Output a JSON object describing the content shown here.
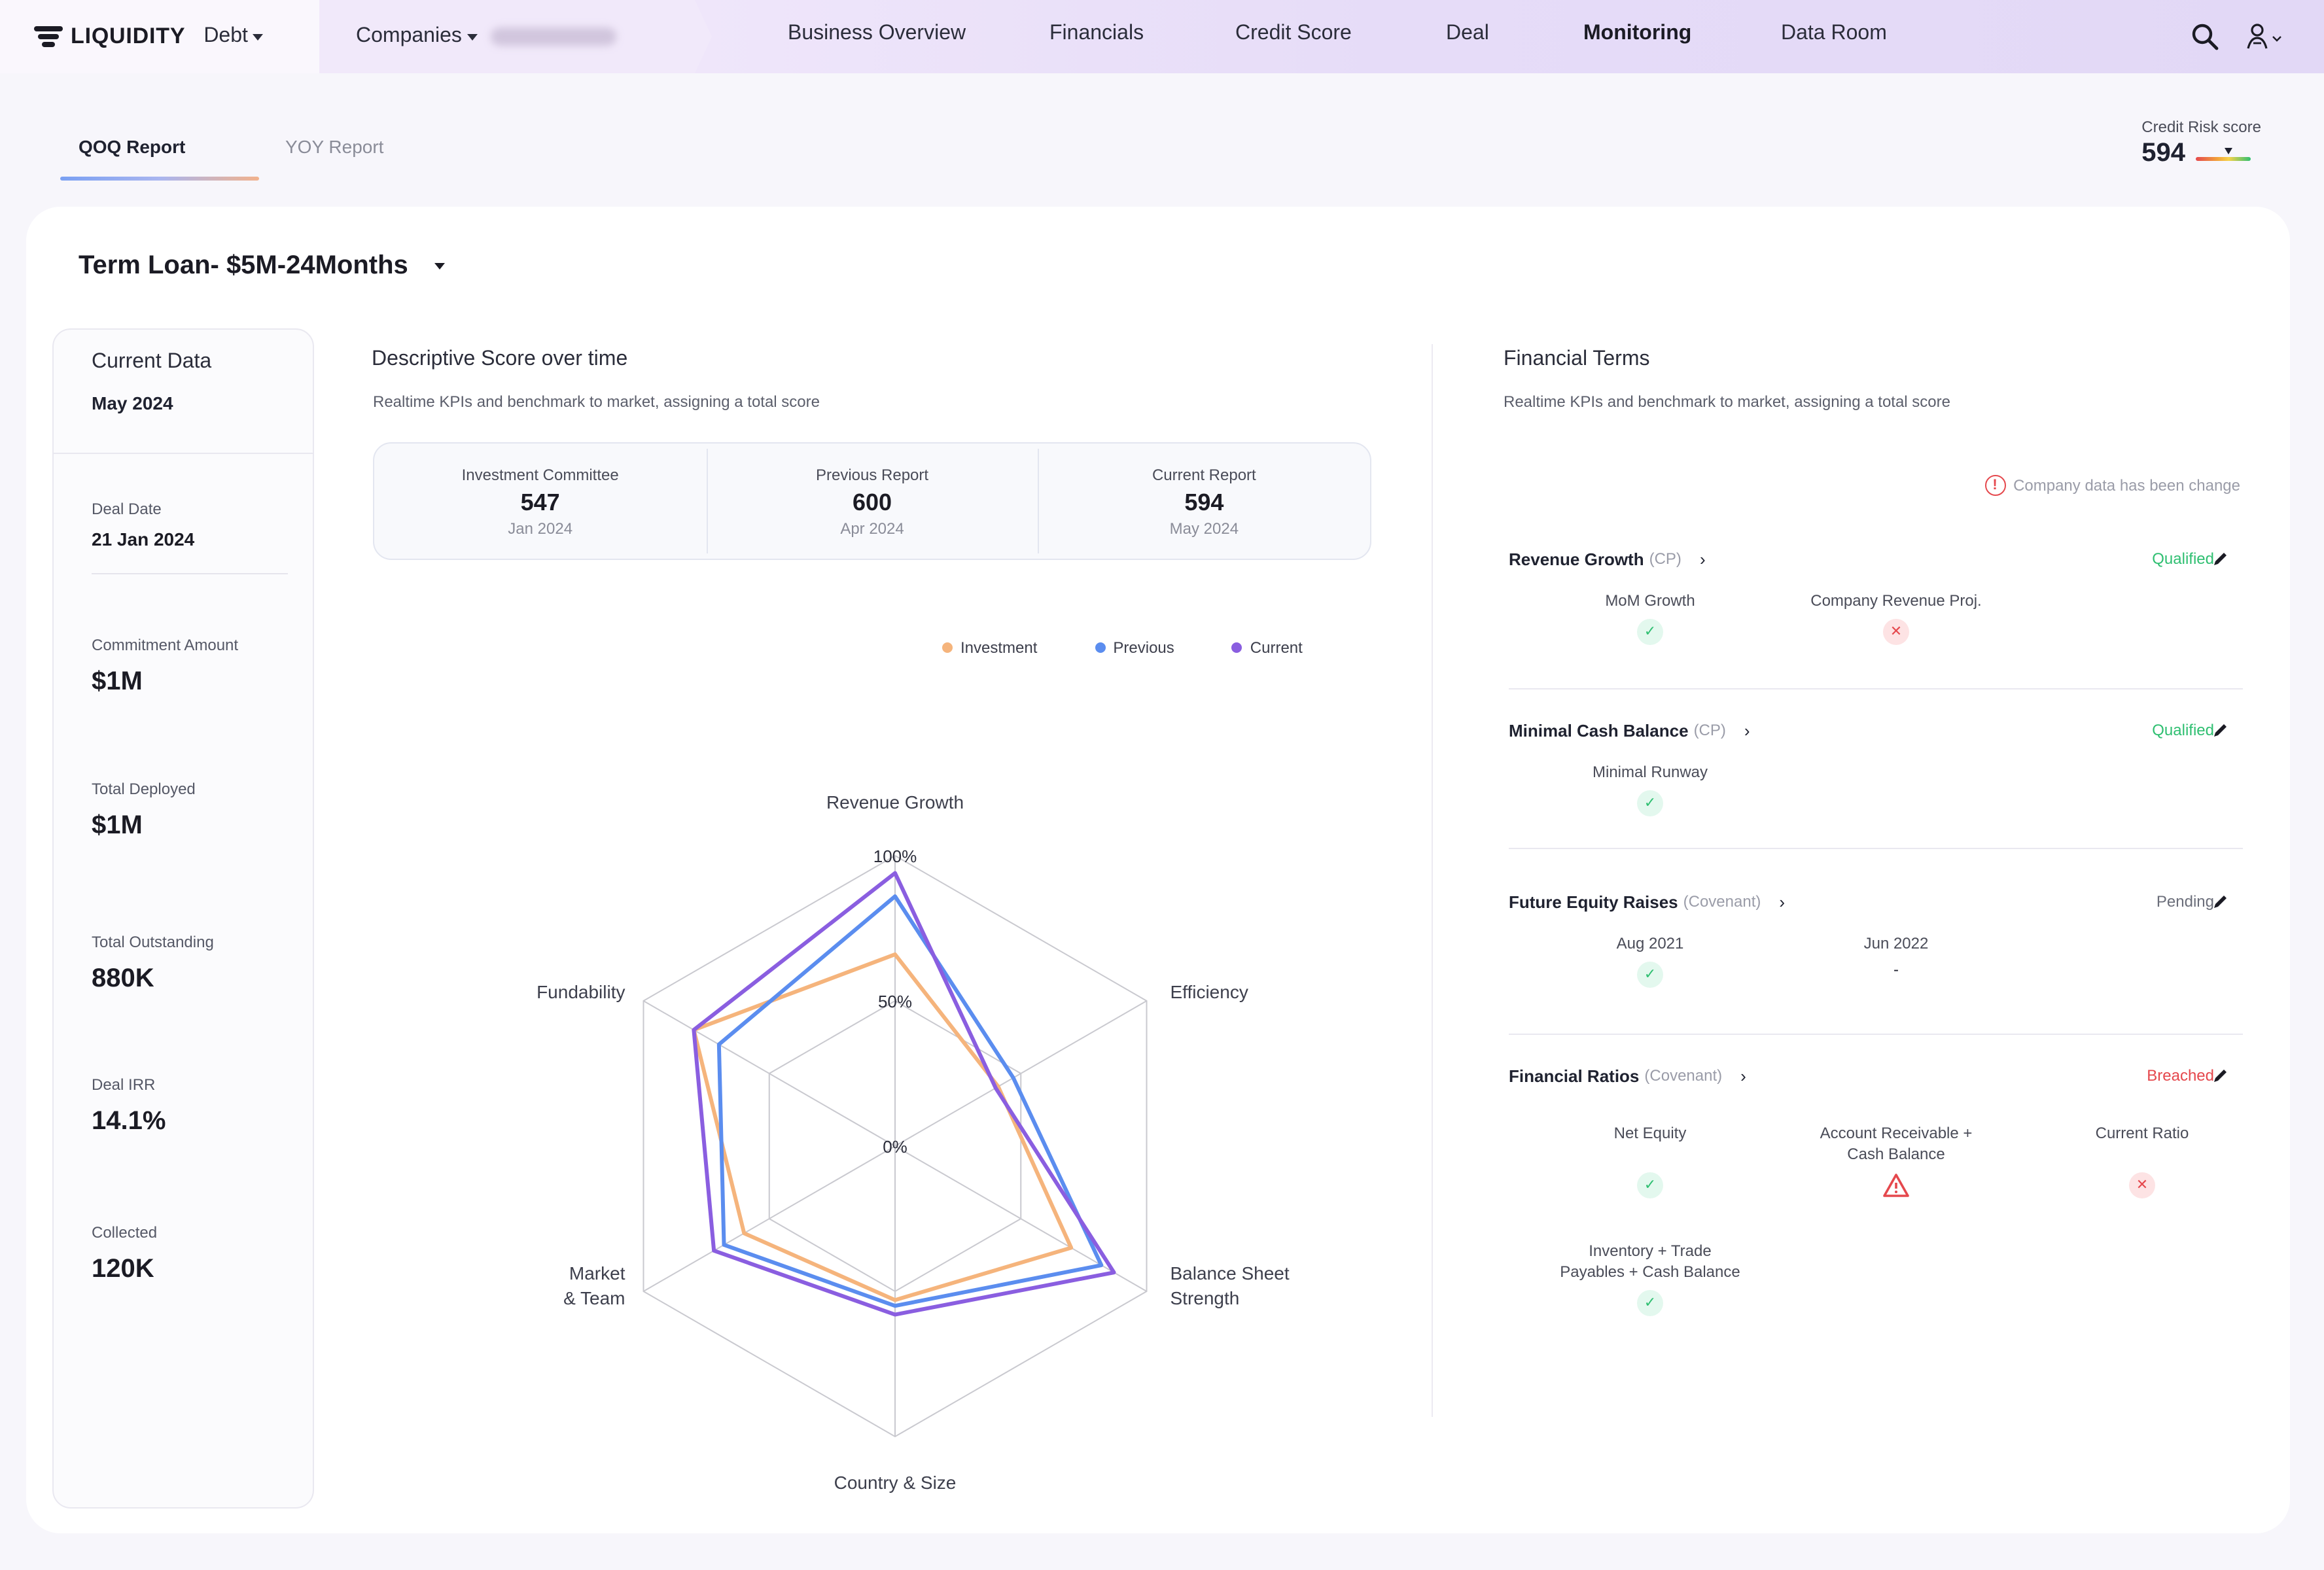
{
  "app": {
    "brand": "LIQUIDITY",
    "product_selector": "Debt",
    "companies_selector": "Companies"
  },
  "nav": {
    "items": [
      "Business Overview",
      "Financials",
      "Credit Score",
      "Deal",
      "Monitoring",
      "Data Room"
    ],
    "active": "Monitoring"
  },
  "tabs": {
    "qoq": "QOQ Report",
    "yoy": "YOY Report",
    "active": "QOQ Report"
  },
  "credit_risk": {
    "label": "Credit Risk score",
    "value": "594"
  },
  "loan": {
    "title": "Term Loan- $5M-24Months"
  },
  "current_data": {
    "title": "Current Data",
    "date": "May 2024",
    "deal_date_label": "Deal Date",
    "deal_date": "21 Jan 2024",
    "commitment_label": "Commitment Amount",
    "commitment": "$1M",
    "deployed_label": "Total Deployed",
    "deployed": "$1M",
    "outstanding_label": "Total Outstanding",
    "outstanding": "880K",
    "irr_label": "Deal IRR",
    "irr": "14.1%",
    "collected_label": "Collected",
    "collected": "120K"
  },
  "descriptive": {
    "title": "Descriptive Score over time",
    "subtitle": "Realtime KPIs and benchmark to market, assigning a total score",
    "scores": [
      {
        "label": "Investment Committee",
        "value": "547",
        "date": "Jan 2024"
      },
      {
        "label": "Previous Report",
        "value": "600",
        "date": "Apr 2024"
      },
      {
        "label": "Current Report",
        "value": "594",
        "date": "May 2024"
      }
    ]
  },
  "chart_data": {
    "type": "radar",
    "axes": [
      "Revenue Growth",
      "Efficiency",
      "Balance Sheet Strength",
      "Country & Size",
      "Market & Team",
      "Fundability"
    ],
    "axis_label_lines": [
      [
        "Revenue Growth"
      ],
      [
        "Efficiency"
      ],
      [
        "Balance Sheet",
        "Strength"
      ],
      [
        "Country & Size"
      ],
      [
        "Market",
        "& Team"
      ],
      [
        "Fundability"
      ]
    ],
    "ring_labels": [
      "0%",
      "50%",
      "100%"
    ],
    "range": [
      0,
      100
    ],
    "legend": "top-right",
    "series": [
      {
        "name": "Investment",
        "color": "#f5b47c",
        "values": [
          66,
          41,
          70,
          53,
          60,
          80
        ]
      },
      {
        "name": "Previous",
        "color": "#5b8def",
        "values": [
          86,
          47,
          82,
          55,
          68,
          70
        ]
      },
      {
        "name": "Current",
        "color": "#8a5ee0",
        "values": [
          94,
          40,
          87,
          58,
          72,
          80
        ]
      }
    ]
  },
  "financial_terms": {
    "title": "Financial Terms",
    "subtitle": "Realtime KPIs and benchmark to market, assigning a total score",
    "warning": "Company data has been change",
    "terms": [
      {
        "name": "Revenue Growth",
        "tag": "(CP)",
        "status": "Qualified",
        "status_class": "qualified",
        "metrics": [
          {
            "label": "MoM Growth",
            "state": "ok"
          },
          {
            "label": "Company Revenue Proj.",
            "state": "bad"
          }
        ]
      },
      {
        "name": "Minimal Cash Balance",
        "tag": "(CP)",
        "status": "Qualified",
        "status_class": "qualified",
        "metrics": [
          {
            "label": "Minimal Runway",
            "state": "ok"
          }
        ]
      },
      {
        "name": "Future Equity Raises",
        "tag": "(Covenant)",
        "status": "Pending",
        "status_class": "pending",
        "metrics": [
          {
            "label": "Aug 2021",
            "state": "ok"
          },
          {
            "label": "Jun 2022",
            "state": "dash",
            "value": "-"
          }
        ]
      },
      {
        "name": "Financial Ratios",
        "tag": "(Covenant)",
        "status": "Breached",
        "status_class": "breached",
        "metrics": [
          {
            "label": "Net Equity",
            "state": "ok"
          },
          {
            "label": "Account Receivable + Cash Balance",
            "state": "warn"
          },
          {
            "label": "Current Ratio",
            "state": "bad"
          },
          {
            "label": "Inventory + Trade Payables + Cash Balance",
            "state": "ok"
          }
        ]
      }
    ]
  },
  "colors": {
    "accent": "#8a5ee0",
    "qualified": "#2fbf71",
    "breached": "#e5484d"
  }
}
